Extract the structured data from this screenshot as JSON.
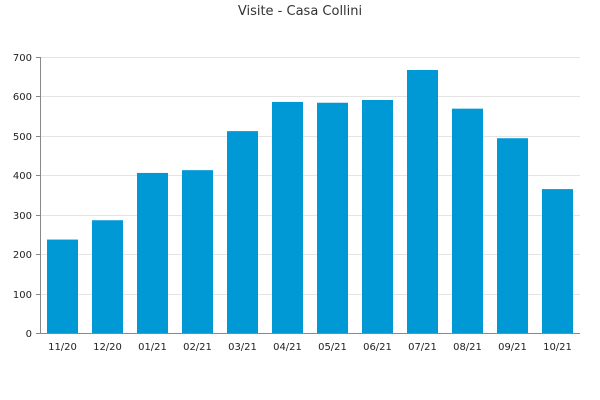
{
  "chart_data": {
    "type": "bar",
    "title": "Visite - Casa Collini",
    "xlabel": "",
    "ylabel": "",
    "categories": [
      "11/20",
      "12/20",
      "01/21",
      "02/21",
      "03/21",
      "04/21",
      "05/21",
      "06/21",
      "07/21",
      "08/21",
      "09/21",
      "10/21"
    ],
    "values": [
      237,
      286,
      406,
      413,
      512,
      586,
      584,
      591,
      667,
      569,
      494,
      365
    ],
    "ylim": [
      0,
      700
    ],
    "yticks": [
      0,
      100,
      200,
      300,
      400,
      500,
      600,
      700
    ],
    "grid": true,
    "legend": "none",
    "colors": {
      "bar": "#0099d6"
    }
  }
}
